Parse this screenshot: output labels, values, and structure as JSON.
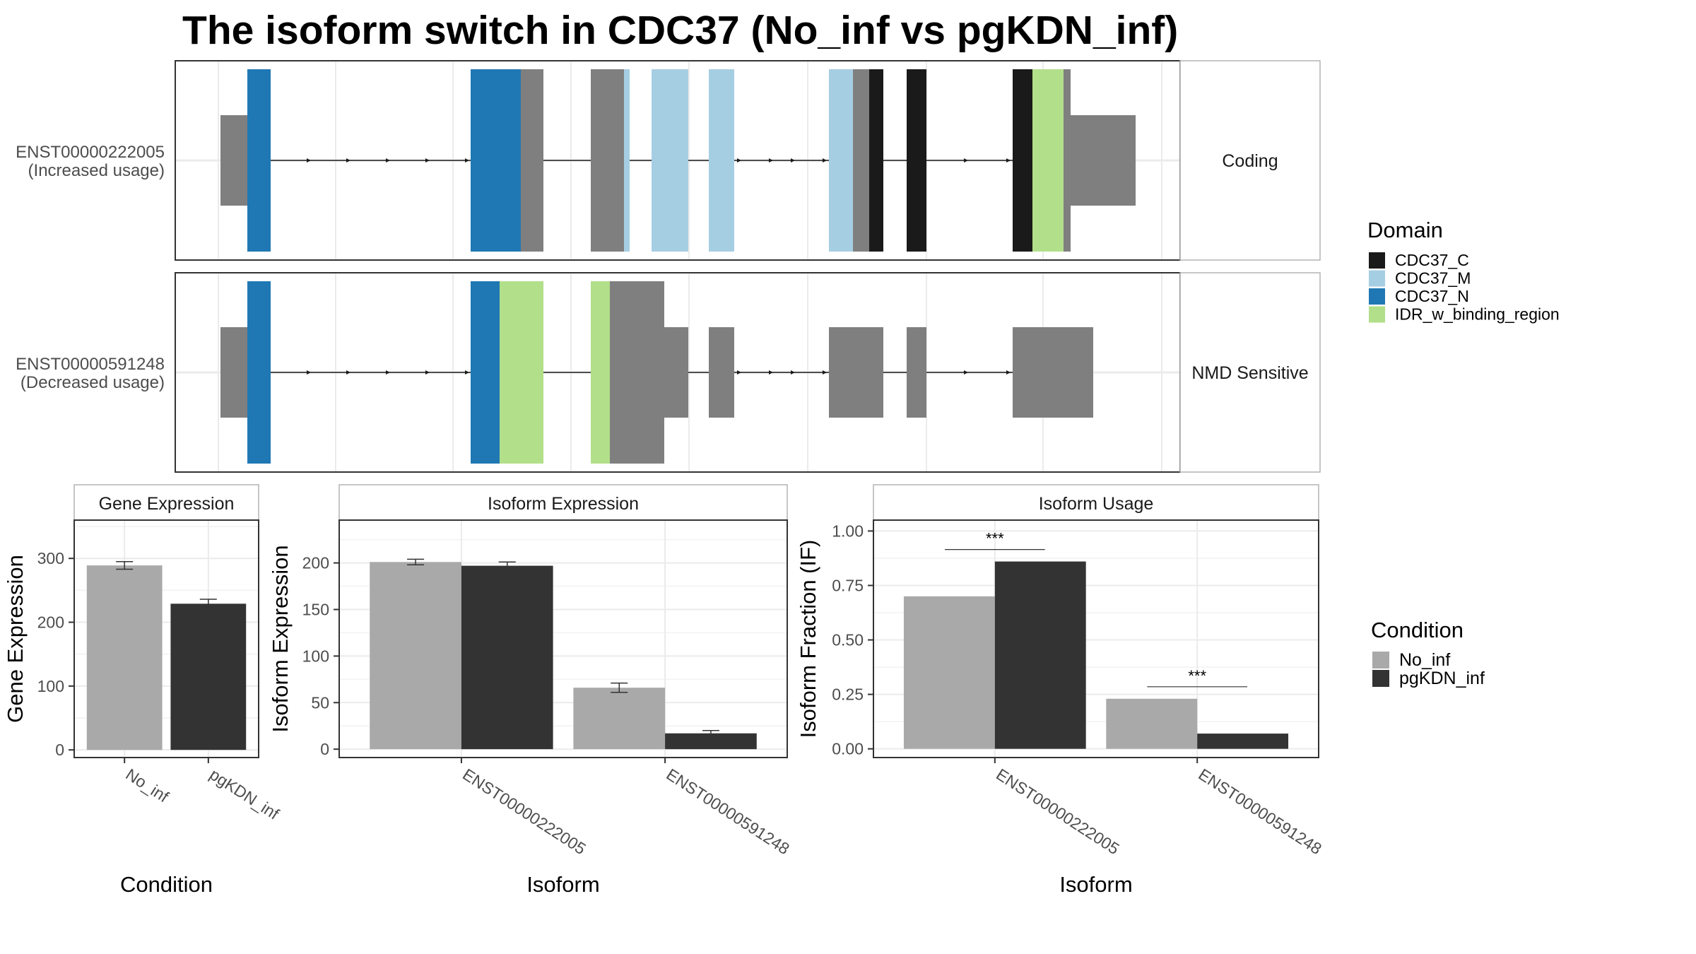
{
  "title": "The isoform switch in CDC37 (No_inf vs pgKDN_inf)",
  "colors": {
    "utr": "#7f7f7f",
    "CDC37_C": "#1a1a1a",
    "CDC37_M": "#a6cee3",
    "CDC37_N": "#1f78b4",
    "IDR_w_binding_region": "#b2df8a",
    "No_inf": "#a9a9a9",
    "pgKDN_inf": "#333333"
  },
  "transcripts": [
    {
      "id": "ENST00000222005",
      "usage": "(Increased usage)",
      "strip": "Coding"
    },
    {
      "id": "ENST00000591248",
      "usage": "(Decreased usage)",
      "strip": "NMD Sensitive"
    }
  ],
  "domain_legend": {
    "title": "Domain",
    "items": [
      {
        "name": "CDC37_C",
        "color": "#1a1a1a"
      },
      {
        "name": "CDC37_M",
        "color": "#a6cee3"
      },
      {
        "name": "CDC37_N",
        "color": "#1f78b4"
      },
      {
        "name": "IDR_w_binding_region",
        "color": "#b2df8a"
      }
    ]
  },
  "condition_legend": {
    "title": "Condition",
    "items": [
      {
        "name": "No_inf",
        "color": "#a9a9a9"
      },
      {
        "name": "pgKDN_inf",
        "color": "#333333"
      }
    ]
  },
  "chart_data": [
    {
      "type": "bar",
      "panel": "Gene Expression",
      "xlabel": "Condition",
      "ylabel": "Gene Expression",
      "categories": [
        "No_inf",
        "pgKDN_inf"
      ],
      "values": [
        289,
        229
      ],
      "errors": [
        6,
        7
      ],
      "ylim": [
        -12,
        360
      ],
      "yticks": [
        0,
        100,
        200,
        300
      ],
      "grid": true
    },
    {
      "type": "bar",
      "panel": "Isoform Expression",
      "xlabel": "Isoform",
      "ylabel": "Isoform Expression",
      "categories": [
        "ENST00000222005",
        "ENST00000591248"
      ],
      "series": [
        {
          "name": "No_inf",
          "values": [
            201,
            66
          ],
          "errors": [
            3,
            5
          ]
        },
        {
          "name": "pgKDN_inf",
          "values": [
            197,
            17
          ],
          "errors": [
            4,
            3
          ]
        }
      ],
      "ylim": [
        -9,
        246
      ],
      "yticks": [
        0,
        50,
        100,
        150,
        200
      ],
      "grid": true
    },
    {
      "type": "bar",
      "panel": "Isoform Usage",
      "xlabel": "Isoform",
      "ylabel": "Isoform Fraction (IF)",
      "categories": [
        "ENST00000222005",
        "ENST00000591248"
      ],
      "series": [
        {
          "name": "No_inf",
          "values": [
            0.7,
            0.23
          ]
        },
        {
          "name": "pgKDN_inf",
          "values": [
            0.86,
            0.07
          ]
        }
      ],
      "significance": [
        "***",
        "***"
      ],
      "ylim": [
        -0.04,
        1.05
      ],
      "yticks": [
        "0.00",
        "0.25",
        "0.50",
        "0.75",
        "1.00"
      ],
      "grid": true
    }
  ]
}
